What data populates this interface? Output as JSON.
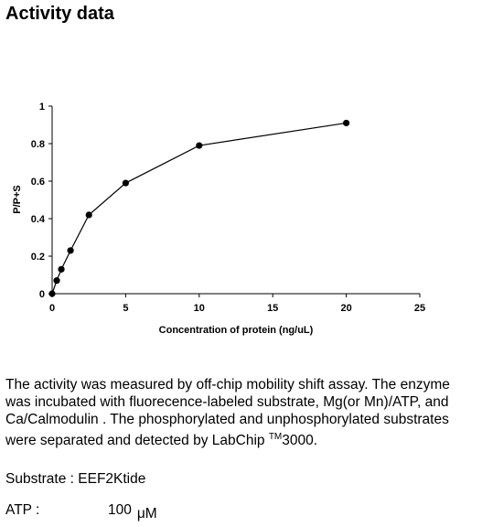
{
  "page": {
    "title": "Activity data"
  },
  "chart_data": {
    "type": "line",
    "x": [
      0,
      0.3125,
      0.625,
      1.25,
      2.5,
      5,
      10,
      20
    ],
    "series": [
      {
        "values": [
          0.0,
          0.07,
          0.13,
          0.23,
          0.42,
          0.59,
          0.79,
          0.91
        ]
      }
    ],
    "xlabel": "Concentration of protein (ng/uL)",
    "ylabel": "P/P+S",
    "xlim": [
      0,
      25
    ],
    "ylim": [
      0,
      1
    ],
    "xticks": [
      0,
      5,
      10,
      15,
      20,
      25
    ],
    "yticks": [
      0,
      0.2,
      0.4,
      0.6,
      0.8,
      1
    ],
    "ytick_labels": [
      "0",
      "0.2",
      "0.4",
      "0.6",
      "0.8",
      "1"
    ],
    "grid": false,
    "marker": "filled-circle",
    "color": "#000000"
  },
  "description": {
    "text": "The activity was measured by off-chip mobility shift assay. The enzyme was incubated with fluorecence-labeled  substrate, Mg(or Mn)/ATP, and Ca/Calmodulin . The phosphorylated and unphosphorylated substrates were separated and detected by LabChip ",
    "trademark": "TM",
    "model": "3000."
  },
  "substrate": {
    "text": "Substrate : EEF2Ktide"
  },
  "atp": {
    "label": "ATP :",
    "value": "100",
    "unit": "μM"
  }
}
